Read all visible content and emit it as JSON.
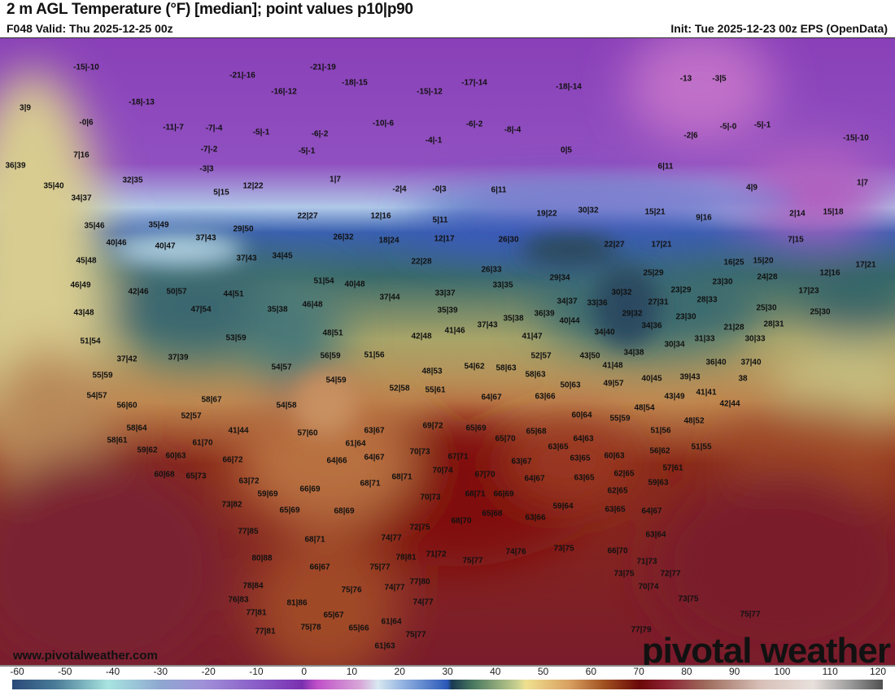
{
  "header": {
    "title": "2 m AGL Temperature (°F) [median]; point values p10|p90",
    "valid": "F048 Valid: Thu 2025-12-25 00z",
    "init": "Init: Tue 2025-12-23 00z EPS (OpenData)"
  },
  "map": {
    "watermark_url": "www.pivotalweather.com",
    "logo": "pivotal weather",
    "point_values": [
      "-15|-10",
      "-21|-19",
      "-21|-16",
      "-18|-15",
      "-16|-12",
      "-15|-12",
      "-17|-14",
      "-18|-14",
      "-13",
      "-3|5",
      "3|9",
      "-18|-13",
      "-0|6",
      "-11|-7",
      "-7|-4",
      "-5|-1",
      "-6|-2",
      "-10|-6",
      "-6|-2",
      "-8|-4",
      "-4|-1",
      "-2|6",
      "-5|-0",
      "-5|-1",
      "-15|-10",
      "7|16",
      "-7|-2",
      "-5|-1",
      "0|5",
      "36|39",
      "-3|3",
      "6|11",
      "32|35",
      "35|40",
      "5|15",
      "12|22",
      "1|7",
      "-2|4",
      "-0|3",
      "6|11",
      "4|9",
      "1|7",
      "34|37",
      "22|27",
      "12|16",
      "5|11",
      "19|22",
      "30|32",
      "15|21",
      "9|16",
      "2|14",
      "15|18",
      "35|46",
      "35|49",
      "29|50",
      "40|46",
      "40|47",
      "37|43",
      "26|32",
      "18|24",
      "12|17",
      "26|30",
      "22|27",
      "17|21",
      "7|15",
      "45|48",
      "37|43",
      "34|45",
      "22|28",
      "16|25",
      "15|20",
      "17|21",
      "26|33",
      "12|16",
      "25|29",
      "46|49",
      "42|46",
      "50|57",
      "51|54",
      "40|48",
      "33|35",
      "29|34",
      "23|30",
      "24|28",
      "44|51",
      "37|44",
      "33|37",
      "30|32",
      "23|29",
      "17|23",
      "43|48",
      "47|54",
      "35|38",
      "46|48",
      "34|37",
      "33|36",
      "27|31",
      "28|33",
      "25|30",
      "25|30",
      "35|39",
      "37|43",
      "35|38",
      "36|39",
      "40|44",
      "29|32",
      "23|30",
      "28|31",
      "21|28",
      "51|54",
      "53|59",
      "48|51",
      "42|48",
      "41|46",
      "41|47",
      "34|40",
      "34|36",
      "31|33",
      "30|34",
      "30|33",
      "37|42",
      "37|39",
      "54|57",
      "56|59",
      "51|56",
      "52|57",
      "43|50",
      "34|38",
      "41|48",
      "36|40",
      "37|40",
      "55|59",
      "54|59",
      "48|53",
      "54|62",
      "58|63",
      "58|63",
      "49|57",
      "40|45",
      "39|43",
      "38",
      "54|57",
      "52|58",
      "55|61",
      "50|63",
      "63|66",
      "64|67",
      "41|41",
      "43|49",
      "56|60",
      "58|67",
      "54|58",
      "42|44",
      "48|54",
      "52|57",
      "60|64",
      "55|59",
      "48|52",
      "41|44",
      "57|60",
      "63|67",
      "69|72",
      "65|69",
      "58|64",
      "51|56",
      "65|68",
      "58|61",
      "61|70",
      "61|64",
      "65|70",
      "63|65",
      "64|63",
      "51|55",
      "59|62",
      "60|63",
      "70|73",
      "67|71",
      "60|63",
      "56|62",
      "66|72",
      "64|66",
      "64|67",
      "63|67",
      "63|65",
      "57|61",
      "60|68",
      "65|73",
      "70|74",
      "67|70",
      "62|65",
      "63|72",
      "68|71",
      "64|67",
      "63|65",
      "59|63",
      "66|69",
      "68|71",
      "59|69",
      "68|71",
      "66|69",
      "70|73",
      "62|65",
      "73|82",
      "65|69",
      "68|69",
      "59|64",
      "63|65",
      "64|67",
      "65|68",
      "63|66",
      "68|70",
      "72|75",
      "77|85",
      "68|71",
      "74|77",
      "63|64",
      "71|72",
      "75|77",
      "74|76",
      "73|75",
      "66|70",
      "80|88",
      "78|81",
      "71|73",
      "66|67",
      "75|77",
      "73|75",
      "72|77",
      "77|80",
      "78|84",
      "75|76",
      "74|77",
      "70|74",
      "76|83",
      "81|86",
      "74|77",
      "73|75",
      "77|81",
      "65|67",
      "75|77",
      "61|64",
      "77|81",
      "75|78",
      "65|66",
      "75|77",
      "77|79",
      "61|63"
    ]
  },
  "colorbar": {
    "units": "°F",
    "ticks": [
      "-60",
      "-50",
      "-40",
      "-30",
      "-20",
      "-10",
      "0",
      "10",
      "20",
      "30",
      "40",
      "50",
      "60",
      "70",
      "80",
      "90",
      "100",
      "110",
      "120"
    ],
    "range": [
      -60,
      120
    ]
  }
}
